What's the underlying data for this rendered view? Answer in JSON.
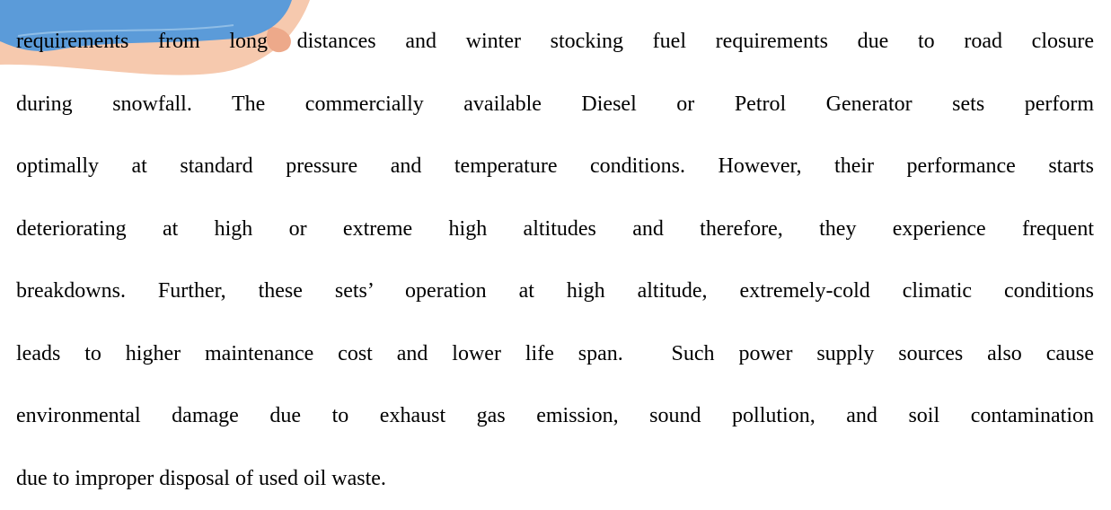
{
  "paragraph": {
    "lines": [
      "requirements from long distances and winter stocking fuel requirements due to road closure",
      "during snowfall. The commercially available Diesel or Petrol Generator sets perform",
      "optimally at standard pressure and temperature conditions. However, their performance starts",
      "deteriorating at high or extreme high altitudes and therefore, they experience frequent",
      "breakdowns. Further, these sets’ operation at high altitude, extremely-cold climatic conditions",
      "leads to higher maintenance cost and lower life span.  Such power supply sources also cause",
      "environmental damage due to exhaust gas emission, sound pollution, and soil contamination",
      "due to improper disposal of used oil waste."
    ]
  }
}
